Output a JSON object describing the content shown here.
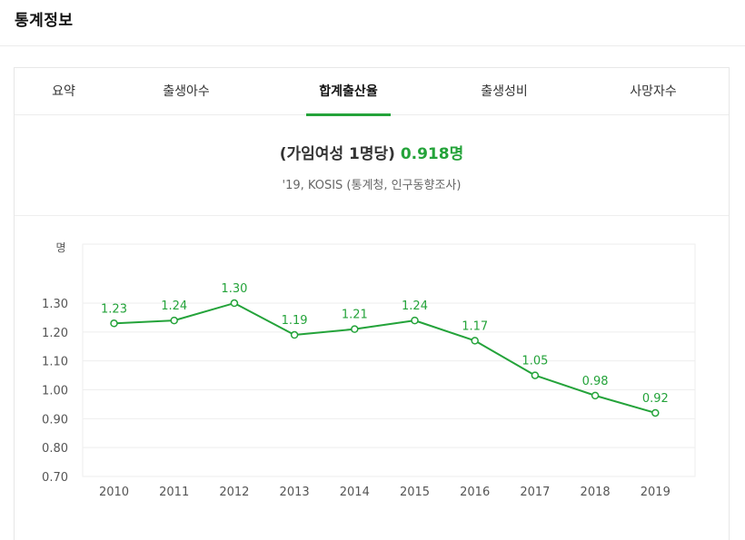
{
  "page_title": "통계정보",
  "tabs": [
    {
      "label": "요약"
    },
    {
      "label": "출생아수"
    },
    {
      "label": "합계출산율",
      "active": true
    },
    {
      "label": "출생성비"
    },
    {
      "label": "사망자수"
    }
  ],
  "headline": {
    "prefix": "(가임여성 1명당)",
    "value": "0.918명"
  },
  "source": "'19, KOSIS (통계청, 인구동향조사)",
  "colors": {
    "accent": "#24a33a",
    "grid": "#eeeeee",
    "axis_text": "#555555"
  },
  "chart_data": {
    "type": "line",
    "ylabel": "명",
    "x": [
      "2010",
      "2011",
      "2012",
      "2013",
      "2014",
      "2015",
      "2016",
      "2017",
      "2018",
      "2019"
    ],
    "values": [
      1.23,
      1.24,
      1.3,
      1.19,
      1.21,
      1.24,
      1.17,
      1.05,
      0.98,
      0.92
    ],
    "data_labels": [
      "1.23",
      "1.24",
      "1.30",
      "1.19",
      "1.21",
      "1.24",
      "1.17",
      "1.05",
      "0.98",
      "0.92"
    ],
    "yticks": [
      "0.70",
      "0.80",
      "0.90",
      "1.00",
      "1.10",
      "1.20",
      "1.30"
    ],
    "ylim": [
      0.7,
      1.3
    ],
    "grid": true,
    "legend": false
  }
}
